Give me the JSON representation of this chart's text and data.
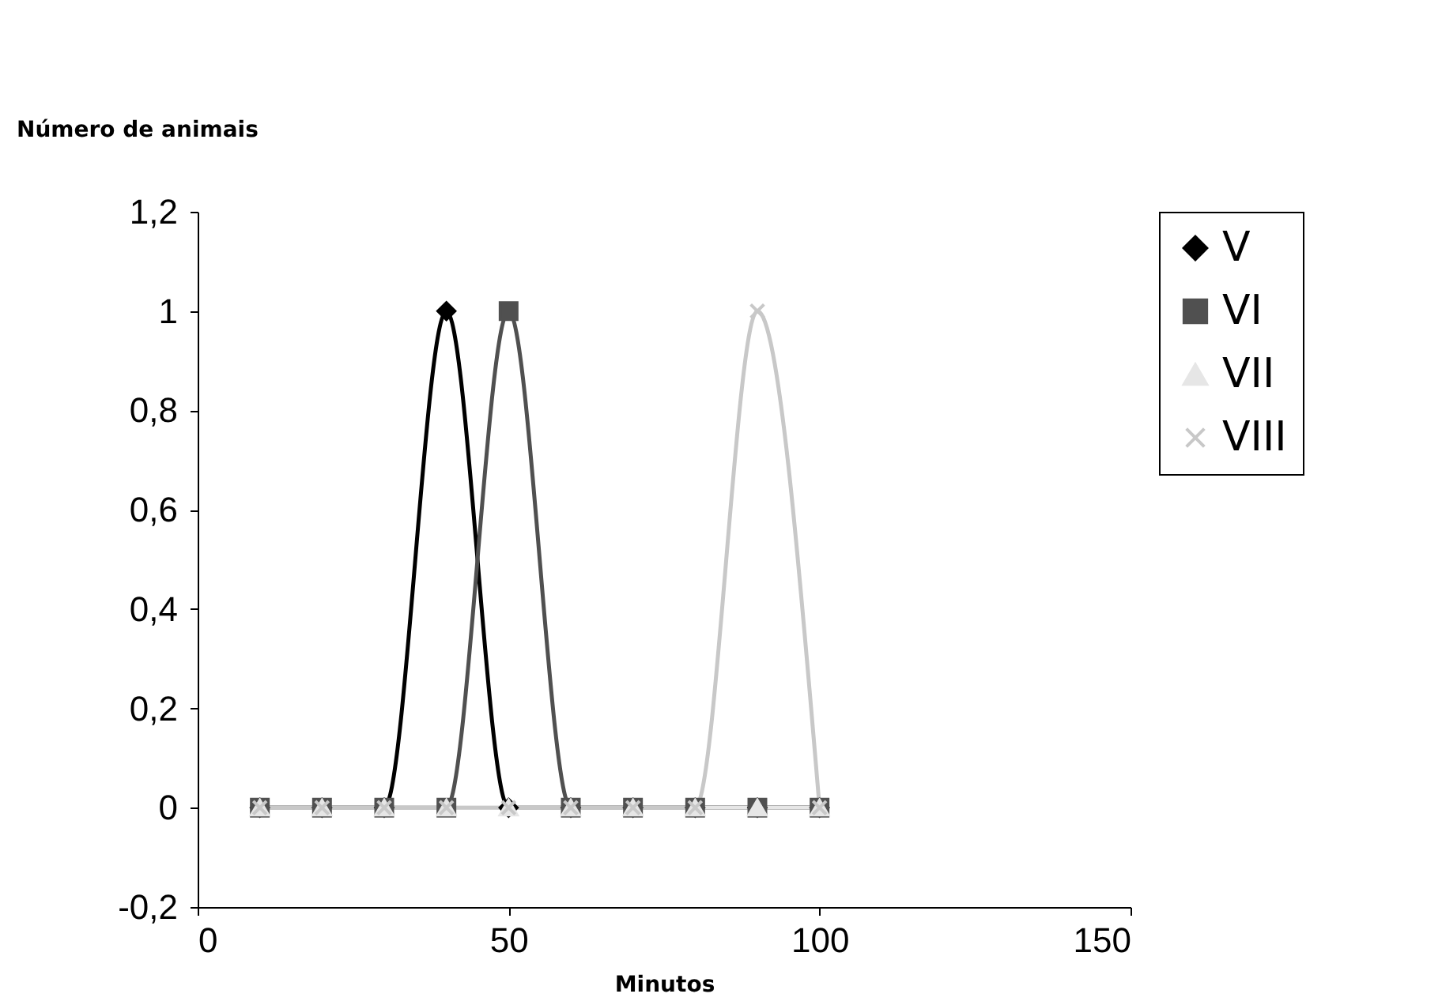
{
  "chart_data": {
    "type": "line",
    "ylabel": "Número de animais",
    "xlabel": "Minutos",
    "x": [
      10,
      20,
      30,
      40,
      50,
      60,
      70,
      80,
      90,
      100
    ],
    "series": [
      {
        "name": "V",
        "color": "#000000",
        "marker": "diamond",
        "values": [
          0,
          0,
          0,
          1,
          0,
          0,
          0,
          0,
          0,
          0
        ]
      },
      {
        "name": "VI",
        "color": "#505050",
        "marker": "square",
        "values": [
          0,
          0,
          0,
          0,
          1,
          0,
          0,
          0,
          0,
          0
        ]
      },
      {
        "name": "VII",
        "color": "#e6e6e6",
        "marker": "triangle",
        "values": [
          0,
          0,
          0,
          0,
          0,
          0,
          0,
          0,
          0,
          0
        ]
      },
      {
        "name": "VIII",
        "color": "#c8c8c8",
        "marker": "cross",
        "values": [
          0,
          0,
          0,
          0,
          0,
          0,
          0,
          0,
          1,
          0
        ]
      }
    ],
    "xlim": [
      0,
      150
    ],
    "xticks": [
      0,
      50,
      100,
      150
    ],
    "ylim": [
      -0.2,
      1.2
    ],
    "yticks": [
      {
        "value": -0.2,
        "label": "-0,2"
      },
      {
        "value": 0,
        "label": "0"
      },
      {
        "value": 0.2,
        "label": "0,2"
      },
      {
        "value": 0.4,
        "label": "0,4"
      },
      {
        "value": 0.6,
        "label": "0,6"
      },
      {
        "value": 0.8,
        "label": "0,8"
      },
      {
        "value": 1,
        "label": "1"
      },
      {
        "value": 1.2,
        "label": "1,2"
      }
    ],
    "grid": false,
    "legend": "right",
    "line_style": "solid"
  }
}
